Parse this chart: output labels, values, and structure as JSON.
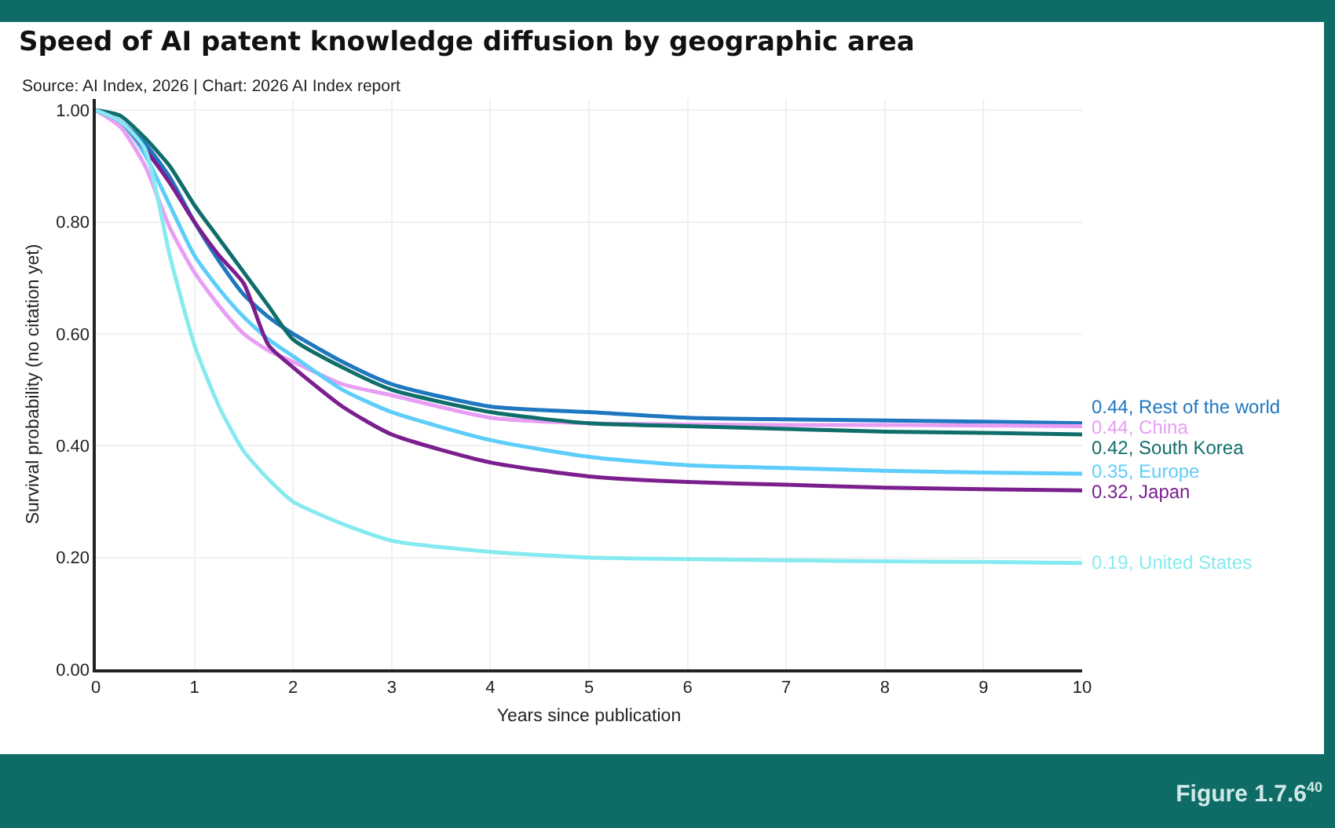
{
  "chart_data": {
    "type": "line",
    "title": "Speed of AI patent knowledge diffusion by geographic area",
    "xlabel": "Years since publication",
    "ylabel": "Survival probability (no citation yet)",
    "annotations": [
      "Source: AI Index, 2026 | Chart: 2026 AI Index report",
      "Figure 1.7.6$^{40}$"
    ],
    "x": [
      0,
      0.25,
      0.5,
      0.75,
      1,
      1.25,
      1.5,
      1.75,
      2,
      2.5,
      3,
      4,
      5,
      6,
      7,
      8,
      9,
      10
    ],
    "series": [
      {
        "name": "0.44, Rest of the world",
        "color": "#1f77c0",
        "values": [
          1,
          0.98,
          0.94,
          0.88,
          0.8,
          0.73,
          0.67,
          0.63,
          0.6,
          0.55,
          0.51,
          0.47,
          0.46,
          0.45,
          0.447,
          0.445,
          0.443,
          0.44
        ]
      },
      {
        "name": "0.44, China",
        "color": "#e89ef5",
        "values": [
          1,
          0.97,
          0.9,
          0.79,
          0.71,
          0.65,
          0.6,
          0.57,
          0.55,
          0.51,
          0.49,
          0.45,
          0.44,
          0.438,
          0.437,
          0.437,
          0.436,
          0.435
        ]
      },
      {
        "name": "0.42, South Korea",
        "color": "#0f6e6a",
        "values": [
          1,
          0.99,
          0.95,
          0.9,
          0.83,
          0.77,
          0.71,
          0.65,
          0.59,
          0.54,
          0.5,
          0.46,
          0.44,
          0.435,
          0.43,
          0.425,
          0.423,
          0.42
        ]
      },
      {
        "name": "0.35, Europe",
        "color": "#5dcdfa",
        "values": [
          1,
          0.98,
          0.92,
          0.83,
          0.74,
          0.68,
          0.63,
          0.59,
          0.56,
          0.5,
          0.46,
          0.41,
          0.38,
          0.365,
          0.36,
          0.355,
          0.352,
          0.35
        ]
      },
      {
        "name": "0.32, Japan",
        "color": "#7b1f8e",
        "values": [
          1,
          0.98,
          0.93,
          0.87,
          0.8,
          0.74,
          0.69,
          0.58,
          0.54,
          0.47,
          0.42,
          0.37,
          0.345,
          0.335,
          0.33,
          0.325,
          0.322,
          0.32
        ]
      },
      {
        "name": "0.19, United States",
        "color": "#86eaf0",
        "values": [
          1,
          0.98,
          0.93,
          0.74,
          0.58,
          0.47,
          0.39,
          0.34,
          0.3,
          0.26,
          0.23,
          0.21,
          0.2,
          0.197,
          0.195,
          0.193,
          0.192,
          0.19
        ]
      }
    ],
    "xlim": [
      0,
      10
    ],
    "xticks": [
      0,
      1,
      2,
      3,
      4,
      5,
      6,
      7,
      8,
      9,
      10
    ],
    "ylim": [
      0,
      1.02
    ],
    "yticks": [
      {
        "value": 0,
        "label": "0.00"
      },
      {
        "value": 0.2,
        "label": "0.20"
      },
      {
        "value": 0.4,
        "label": "0.40"
      },
      {
        "value": 0.6,
        "label": "0.60"
      },
      {
        "value": 0.8,
        "label": "0.80"
      },
      {
        "value": 1,
        "label": "1.00"
      }
    ],
    "grid": true,
    "line_style": "solid",
    "marker": "none"
  }
}
